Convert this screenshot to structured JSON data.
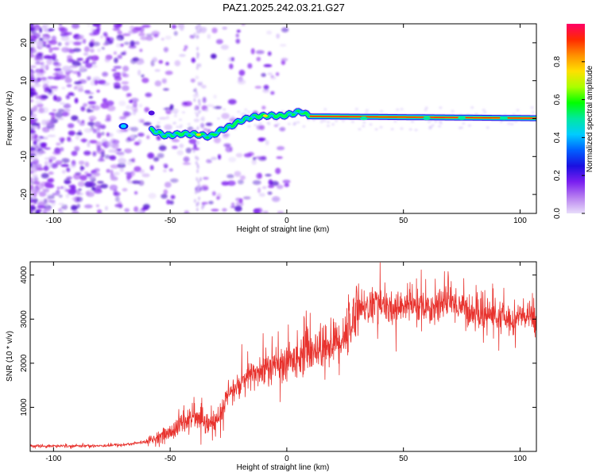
{
  "title": "PAZ1.2025.242.03.21.G27",
  "chart_data": [
    {
      "type": "heatmap",
      "name": "spectrogram",
      "xlabel": "Height of straight line (km)",
      "ylabel": "Frequency (Hz)",
      "xlim": [
        -110,
        107
      ],
      "ylim": [
        -25,
        25
      ],
      "xticks": [
        -100,
        -50,
        0,
        50,
        100
      ],
      "yticks": [
        -20,
        -10,
        0,
        10,
        20
      ],
      "colorbar": {
        "label": "Normalized spectral amplitude",
        "ticks": [
          0.0,
          0.2,
          0.4,
          0.6,
          0.8
        ],
        "range": [
          0,
          1
        ],
        "colormap": [
          "#e8ddfa",
          "#b880f0",
          "#7a1ef0",
          "#1a10e0",
          "#0060ff",
          "#00ccff",
          "#00e8a0",
          "#00ff00",
          "#aaff00",
          "#ffe000",
          "#ff9000",
          "#ff2a00",
          "#ff0066"
        ]
      },
      "ridge": {
        "description_free_values": true,
        "points": [
          [
            -58,
            -3.0
          ],
          [
            -52,
            -4.5
          ],
          [
            -45,
            -4.0
          ],
          [
            -38,
            -4.2
          ],
          [
            -33,
            -4.8
          ],
          [
            -28,
            -3.0
          ],
          [
            -24,
            -2.0
          ],
          [
            -20,
            -0.6
          ],
          [
            -15,
            0.4
          ],
          [
            -8,
            0.8
          ],
          [
            -2,
            0.7
          ],
          [
            3,
            1.4
          ],
          [
            6,
            1.9
          ],
          [
            10,
            0.6
          ],
          [
            107,
            0.1
          ]
        ]
      }
    },
    {
      "type": "line",
      "name": "snr",
      "xlabel": "Height of straight line (km)",
      "ylabel": "SNR (10 * v/v)",
      "xlim": [
        -110,
        107
      ],
      "ylim": [
        0,
        4300
      ],
      "xticks": [
        -100,
        -50,
        0,
        50,
        100
      ],
      "yticks": [
        1000,
        2000,
        3000,
        4000
      ],
      "color": "#e8332e",
      "envelope": {
        "x": [
          -110,
          -80,
          -70,
          -60,
          -50,
          -45,
          -40,
          -35,
          -30,
          -25,
          -20,
          -15,
          -10,
          -5,
          0,
          5,
          10,
          15,
          20,
          25,
          28,
          30,
          35,
          40,
          45,
          50,
          55,
          60,
          65,
          70,
          75,
          80,
          85,
          90,
          95,
          100,
          107
        ],
        "y": [
          120,
          130,
          150,
          220,
          420,
          650,
          780,
          600,
          650,
          1300,
          1500,
          1750,
          1850,
          1950,
          1950,
          2200,
          2300,
          2350,
          2450,
          2650,
          2900,
          3350,
          3250,
          3400,
          3150,
          3350,
          3300,
          3200,
          3350,
          3400,
          3300,
          3100,
          3150,
          3050,
          3000,
          3050,
          3050
        ]
      }
    }
  ]
}
